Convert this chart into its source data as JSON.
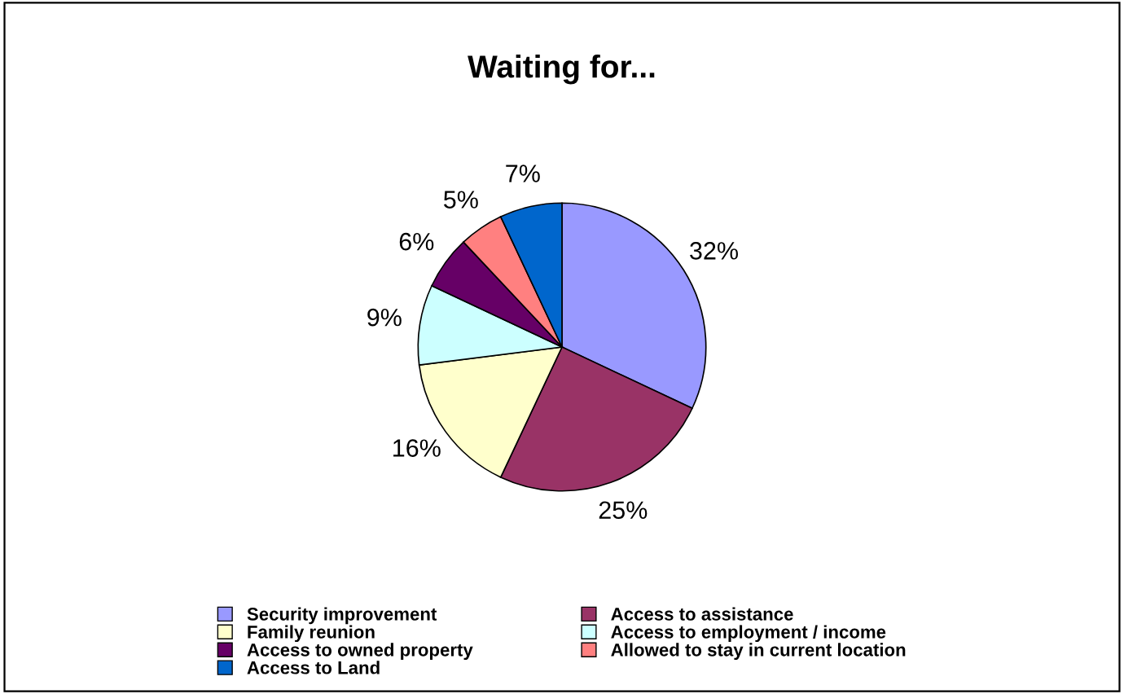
{
  "chart_data": {
    "type": "pie",
    "title": "Waiting for...",
    "categories": [
      "Security improvement",
      "Access to assistance",
      "Family reunion",
      "Access to employment / income",
      "Access to owned property",
      "Allowed to stay in current location",
      "Access to Land"
    ],
    "values": [
      32,
      25,
      16,
      9,
      6,
      5,
      7
    ],
    "colors": [
      "#9999ff",
      "#993366",
      "#ffffcc",
      "#ccffff",
      "#660066",
      "#ff8080",
      "#0066cc"
    ],
    "value_labels": [
      "32%",
      "25%",
      "16%",
      "9%",
      "6%",
      "5%",
      "7%"
    ],
    "legend": "bottom"
  }
}
